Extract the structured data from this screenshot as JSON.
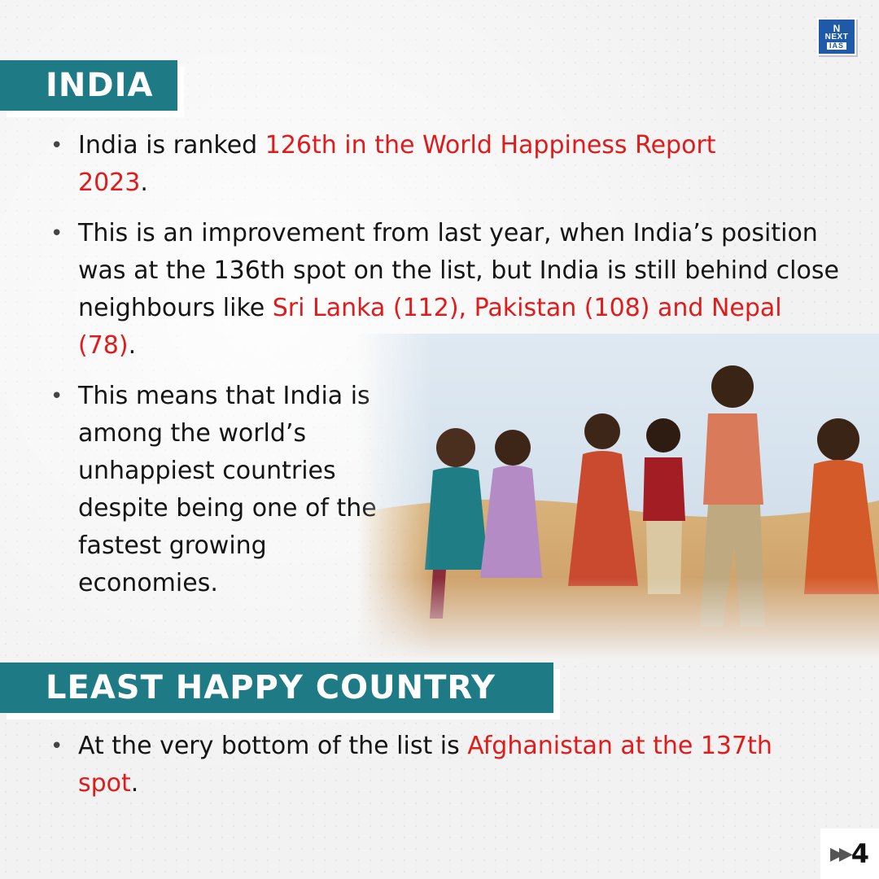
{
  "logo": {
    "line1": "N",
    "line2": "NEXT",
    "line3": "IAS"
  },
  "sections": {
    "india": {
      "title": "INDIA"
    },
    "least_happy": {
      "title": "LEAST HAPPY COUNTRY"
    }
  },
  "bullets": {
    "b1": {
      "pre": "India is ranked ",
      "highlight": "126th in the World Happiness Report 2023",
      "post": "."
    },
    "b2": {
      "pre": "This is an improvement from last year, when India’s position was at the 136th spot on the list, but India is still behind close neighbours like ",
      "highlight": "Sri Lanka (112), Pakistan (108) and Nepal (78)",
      "post": "."
    },
    "b3": {
      "text": "This means that India is among the world’s unhappiest countries despite being one of the fastest growing economies."
    },
    "b4": {
      "pre": "At the very bottom of the list is ",
      "highlight": "Afghanistan at the 137th spot",
      "post": "."
    }
  },
  "page": {
    "number": "4",
    "arrow": "▶▶"
  },
  "colors": {
    "header_bg": "#1e7a84",
    "highlight": "#e01b1b",
    "logo_bg": "#1e5aa8"
  }
}
